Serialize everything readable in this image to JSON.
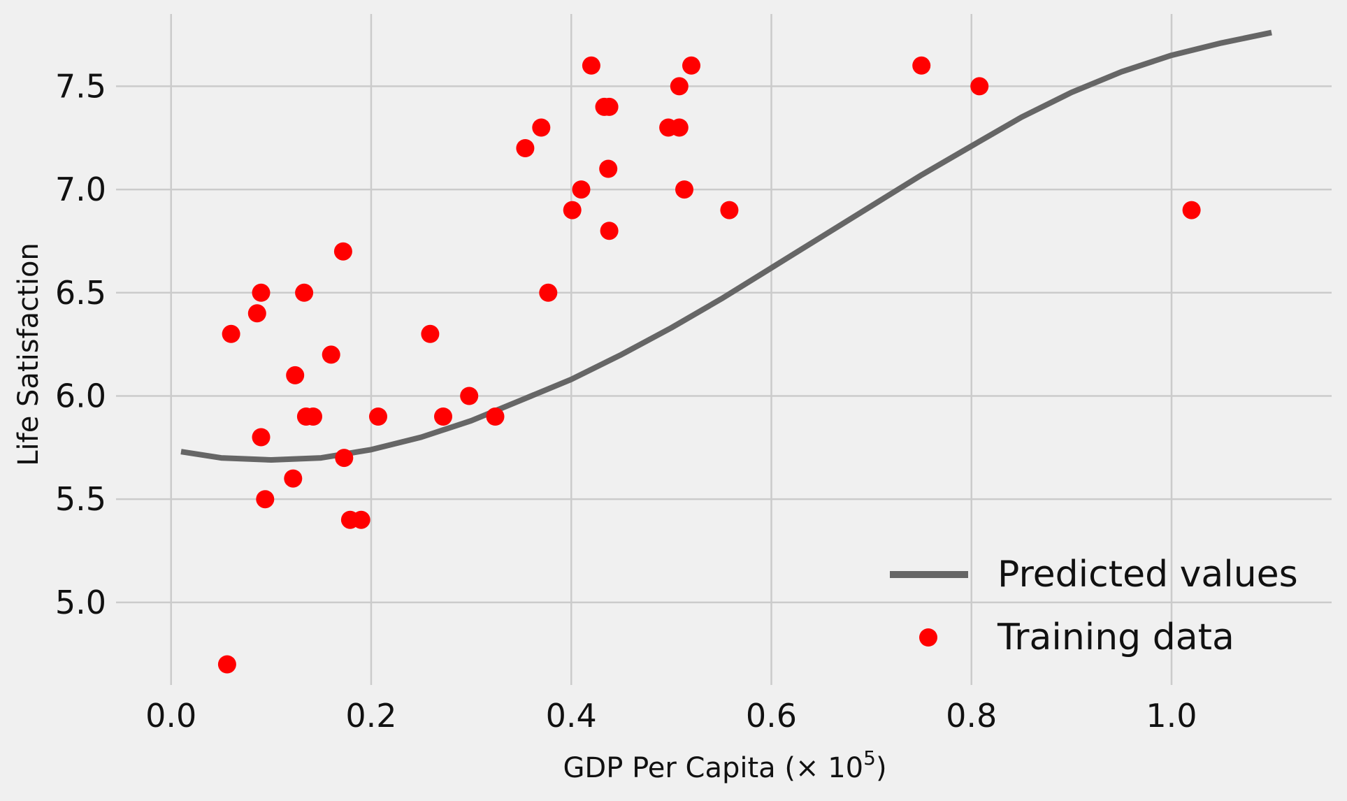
{
  "chart_data": {
    "type": "scatter",
    "title": "",
    "xlabel": "GDP Per Capita (× 10",
    "xlabel_exponent": "5",
    "xlabel_suffix": ")",
    "ylabel": "Life Satisfaction",
    "xlim": [
      -0.055,
      1.16
    ],
    "ylim": [
      4.6,
      7.85
    ],
    "xticks": [
      0.0,
      0.2,
      0.4,
      0.6,
      0.8,
      1.0
    ],
    "xtick_labels": [
      "0.0",
      "0.2",
      "0.4",
      "0.6",
      "0.8",
      "1.0"
    ],
    "yticks": [
      5.0,
      5.5,
      6.0,
      6.5,
      7.0,
      7.5
    ],
    "ytick_labels": [
      "5.0",
      "5.5",
      "6.0",
      "6.5",
      "7.0",
      "7.5"
    ],
    "grid": true,
    "legend_position": "bottom-right",
    "series": [
      {
        "name": "Predicted values",
        "kind": "line",
        "color": "#666666",
        "x": [
          0.01,
          0.05,
          0.1,
          0.15,
          0.2,
          0.25,
          0.3,
          0.35,
          0.4,
          0.45,
          0.5,
          0.55,
          0.6,
          0.65,
          0.7,
          0.75,
          0.8,
          0.85,
          0.9,
          0.95,
          1.0,
          1.05,
          1.1
        ],
        "y": [
          5.73,
          5.7,
          5.69,
          5.7,
          5.74,
          5.8,
          5.88,
          5.98,
          6.08,
          6.2,
          6.33,
          6.47,
          6.62,
          6.77,
          6.92,
          7.07,
          7.21,
          7.35,
          7.47,
          7.57,
          7.65,
          7.71,
          7.76
        ]
      },
      {
        "name": "Training data",
        "kind": "scatter",
        "color": "#ff0000",
        "points": [
          [
            0.056,
            4.7
          ],
          [
            0.06,
            6.3
          ],
          [
            0.086,
            6.4
          ],
          [
            0.09,
            6.5
          ],
          [
            0.09,
            5.8
          ],
          [
            0.094,
            5.5
          ],
          [
            0.122,
            5.6
          ],
          [
            0.124,
            6.1
          ],
          [
            0.133,
            6.5
          ],
          [
            0.135,
            5.9
          ],
          [
            0.142,
            5.9
          ],
          [
            0.16,
            6.2
          ],
          [
            0.172,
            6.7
          ],
          [
            0.173,
            5.7
          ],
          [
            0.179,
            5.4
          ],
          [
            0.19,
            5.4
          ],
          [
            0.207,
            5.9
          ],
          [
            0.259,
            6.3
          ],
          [
            0.272,
            5.9
          ],
          [
            0.298,
            6.0
          ],
          [
            0.324,
            5.9
          ],
          [
            0.354,
            7.2
          ],
          [
            0.37,
            7.3
          ],
          [
            0.377,
            6.5
          ],
          [
            0.401,
            6.9
          ],
          [
            0.41,
            7.0
          ],
          [
            0.42,
            7.6
          ],
          [
            0.433,
            7.4
          ],
          [
            0.438,
            7.4
          ],
          [
            0.437,
            7.1
          ],
          [
            0.438,
            6.8
          ],
          [
            0.497,
            7.3
          ],
          [
            0.508,
            7.5
          ],
          [
            0.508,
            7.3
          ],
          [
            0.513,
            7.0
          ],
          [
            0.52,
            7.6
          ],
          [
            0.558,
            6.9
          ],
          [
            0.75,
            7.6
          ],
          [
            0.808,
            7.5
          ],
          [
            1.02,
            6.9
          ]
        ]
      }
    ],
    "legend": [
      {
        "label": "Predicted values",
        "marker": "line",
        "color": "#666666"
      },
      {
        "label": "Training data",
        "marker": "dot",
        "color": "#ff0000"
      }
    ]
  }
}
